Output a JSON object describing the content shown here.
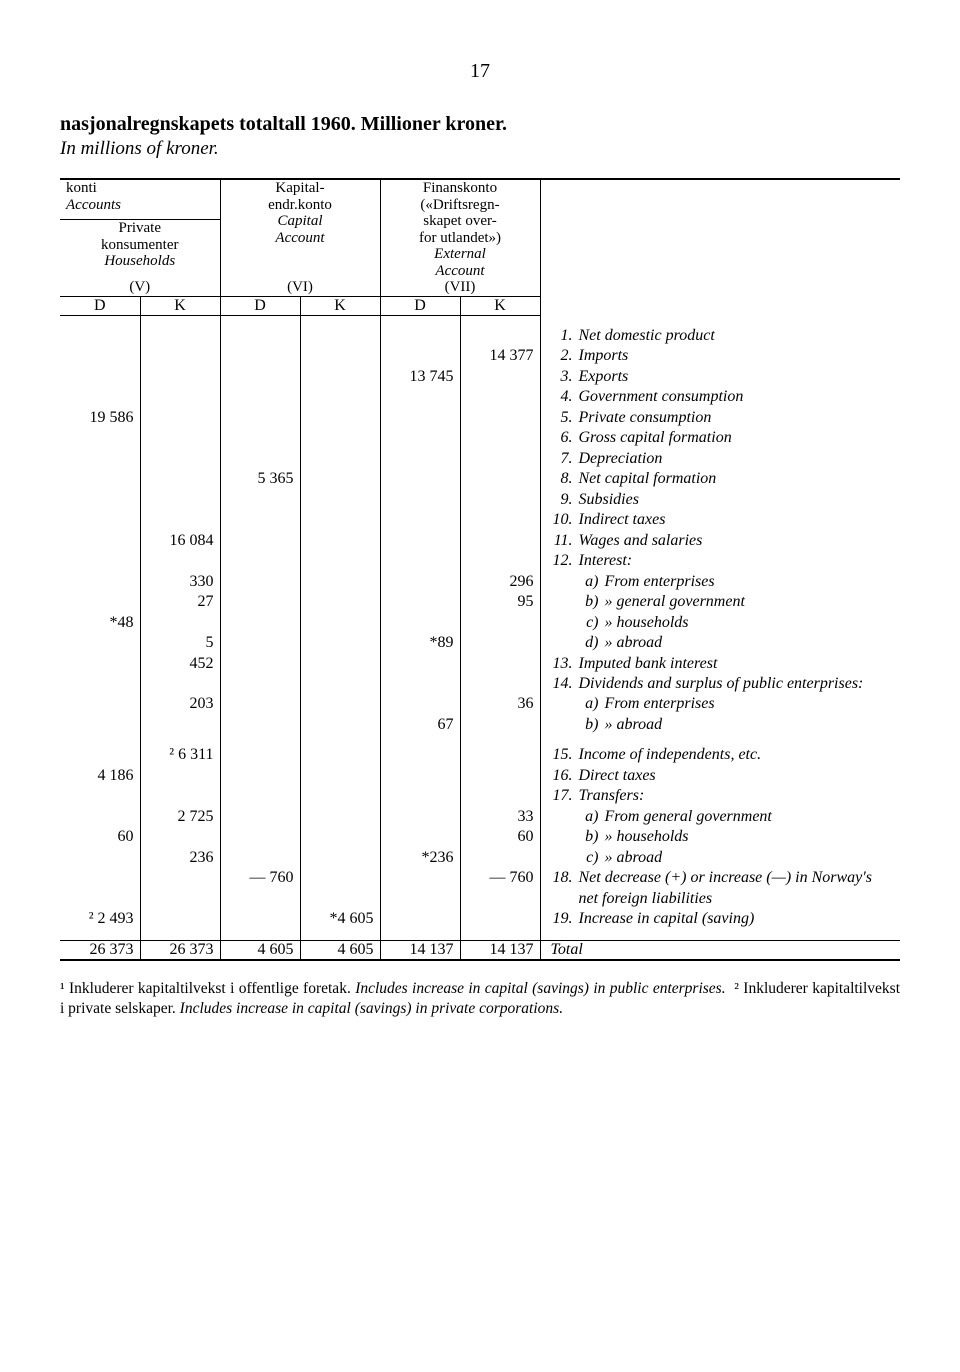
{
  "page_number": "17",
  "title": "nasjonalregnskapets totaltall 1960. Millioner kroner.",
  "subtitle": "In millions of kroner.",
  "header": {
    "konti_line1": "konti",
    "konti_line2": "Accounts",
    "col_v": {
      "l1": "Private",
      "l2": "konsumenter",
      "l3": "Households",
      "roman": "(V)"
    },
    "col_vi": {
      "l1": "Kapital-",
      "l2": "endr.konto",
      "l3": "Capital",
      "l4": "Account",
      "roman": "(VI)"
    },
    "col_vii": {
      "l1": "Finanskonto",
      "l2": "(«Driftsregn-",
      "l3": "skapet over-",
      "l4": "for utlandet»)",
      "l5": "External",
      "l6": "Account",
      "roman": "(VII)"
    },
    "D": "D",
    "K": "K"
  },
  "rows": {
    "r2k_vii": "14 377",
    "r3d_vii": "13 745",
    "r5d_v": "19 586",
    "r8d_vi": "5 365",
    "r11k_v": "16 084",
    "r12a_k_v": "330",
    "r12a_k_vii": "296",
    "r12b_k_v": "27",
    "r12b_k_vii": "95",
    "r12c_d_v": "*48",
    "r12d_k_v": "5",
    "r12d_d_vii": "*89",
    "r13k_v": "452",
    "r14a_k_v": "203",
    "r14a_k_vii": "36",
    "r14b_d_vii": "67",
    "r15k_v": "² 6 311",
    "r16d_v": "4 186",
    "r17a_k_v": "2 725",
    "r17a_k_vii": "33",
    "r17b_d_v": "60",
    "r17b_k_vii": "60",
    "r17c_k_v": "236",
    "r17c_d_vii": "*236",
    "r18d_vi": "— 760",
    "r18k_vii": "— 760",
    "r19d_v": "² 2 493",
    "r19k_vi": "*4 605"
  },
  "totals": {
    "v_d": "26 373",
    "v_k": "26 373",
    "vi_d": "4 605",
    "vi_k": "4 605",
    "vii_d": "14 137",
    "vii_k": "14 137",
    "label": "Total"
  },
  "descriptions": {
    "d1": "Net domestic product",
    "d2": "Imports",
    "d3": "Exports",
    "d4": "Government consumption",
    "d5": "Private consumption",
    "d6": "Gross capital formation",
    "d7": "Depreciation",
    "d8": "Net capital formation",
    "d9": "Subsidies",
    "d10": "Indirect taxes",
    "d11": "Wages and salaries",
    "d12": "Interest:",
    "d12a": "From enterprises",
    "d12b": "»      general government",
    "d12c": "»      households",
    "d12d": "»      abroad",
    "d13": "Imputed bank interest",
    "d14": "Dividends and surplus of public enterprises:",
    "d14a": "From enterprises",
    "d14b": "»      abroad",
    "d15": "Income of independents, etc.",
    "d16": "Direct taxes",
    "d17": "Transfers:",
    "d17a": "From general government",
    "d17b": "»      households",
    "d17c": "»      abroad",
    "d18": "Net decrease (+) or increase (—) in Norway's net foreign liabilities",
    "d19": "Increase in capital (saving)"
  },
  "footnote": {
    "f1_a": "¹ Inkluderer kapitaltilvekst i offentlige foretak.",
    "f1_b": "Includes increase in capital (savings) in public enterprises.",
    "f2_a": "² Inkluderer kapitaltilvekst i private selskaper.",
    "f2_b": "Includes increase in capital (savings) in private corporations."
  }
}
